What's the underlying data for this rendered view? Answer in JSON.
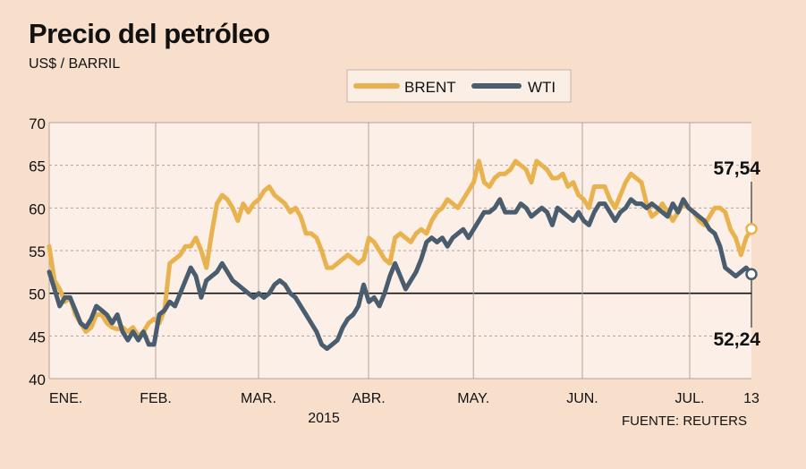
{
  "header": {
    "title": "Precio del petróleo",
    "subtitle": "US$ / BARRIL",
    "source": "FUENTE: REUTERS"
  },
  "chart_data": {
    "type": "line",
    "ylim": [
      40,
      70
    ],
    "y_ticks": [
      40,
      45,
      50,
      55,
      60,
      65,
      70
    ],
    "x_tick_labels": [
      "ENE.",
      "FEB.",
      "MAR.",
      "ABR.",
      "MAY.",
      "JUN.",
      "JUL.",
      "13"
    ],
    "year_label": "2015",
    "reference_line": 50,
    "grid": "dashed-horizontal",
    "legend_position": "top-center",
    "n_points": 135,
    "series": [
      {
        "name": "BRENT",
        "color": "#e8b34e",
        "end_label": "57,54",
        "values": [
          55.5,
          51.5,
          50.5,
          49.0,
          49.5,
          47.5,
          46.5,
          45.5,
          46.0,
          47.5,
          47.5,
          46.5,
          46.0,
          45.8,
          46.0,
          45.5,
          46.0,
          45.0,
          45.5,
          46.5,
          47.0,
          46.5,
          48.0,
          53.5,
          54.0,
          54.5,
          55.5,
          55.5,
          56.5,
          55.0,
          53.0,
          57.0,
          60.5,
          61.5,
          61.0,
          60.0,
          58.5,
          60.5,
          59.5,
          60.5,
          61.0,
          62.0,
          62.5,
          61.5,
          61.0,
          60.5,
          59.5,
          60.0,
          59.0,
          57.0,
          57.0,
          56.5,
          55.0,
          53.0,
          53.0,
          53.5,
          54.0,
          54.5,
          54.0,
          53.5,
          54.0,
          56.5,
          56.0,
          55.0,
          54.0,
          53.5,
          56.5,
          57.0,
          56.5,
          56.0,
          57.0,
          57.5,
          57.0,
          58.5,
          59.5,
          60.0,
          61.0,
          60.5,
          60.0,
          61.0,
          62.0,
          63.0,
          65.5,
          63.0,
          62.5,
          63.5,
          64.0,
          64.0,
          64.5,
          65.5,
          65.0,
          64.5,
          63.0,
          65.5,
          65.0,
          64.5,
          63.5,
          63.5,
          64.0,
          62.5,
          63.0,
          61.5,
          61.0,
          60.0,
          62.5,
          62.5,
          62.5,
          61.0,
          60.0,
          61.5,
          63.0,
          64.0,
          63.5,
          63.0,
          60.5,
          59.0,
          59.5,
          60.5,
          59.5,
          58.5,
          59.5,
          60.5,
          60.0,
          59.5,
          58.5,
          58.0,
          59.0,
          60.0,
          60.0,
          59.5,
          57.5,
          56.5,
          54.5,
          56.5,
          57.54
        ]
      },
      {
        "name": "WTI",
        "color": "#4a5d6e",
        "end_label": "52,24",
        "values": [
          52.5,
          50.5,
          48.5,
          49.5,
          49.5,
          48.0,
          46.5,
          46.0,
          47.0,
          48.5,
          48.0,
          47.5,
          46.5,
          47.5,
          45.5,
          44.5,
          45.5,
          44.5,
          45.5,
          44.0,
          44.0,
          47.5,
          48.0,
          49.0,
          48.5,
          50.0,
          51.5,
          53.0,
          52.0,
          49.5,
          51.5,
          52.0,
          52.5,
          53.5,
          52.5,
          51.5,
          51.0,
          50.5,
          50.0,
          49.5,
          50.0,
          49.5,
          50.0,
          51.0,
          51.5,
          51.0,
          50.0,
          49.5,
          48.5,
          47.5,
          46.5,
          45.5,
          44.0,
          43.5,
          44.0,
          44.5,
          46.0,
          47.0,
          47.5,
          48.5,
          51.0,
          49.0,
          49.5,
          48.5,
          50.0,
          52.0,
          53.5,
          52.0,
          50.5,
          51.5,
          52.5,
          54.0,
          56.0,
          56.5,
          56.0,
          56.5,
          55.5,
          56.5,
          57.0,
          57.5,
          56.5,
          57.5,
          58.5,
          59.5,
          59.5,
          60.0,
          61.0,
          59.5,
          59.5,
          59.5,
          60.5,
          60.0,
          59.0,
          59.5,
          60.0,
          59.5,
          58.0,
          60.0,
          59.5,
          59.0,
          58.5,
          59.5,
          58.5,
          58.0,
          59.5,
          60.5,
          60.5,
          59.5,
          58.5,
          59.5,
          60.0,
          61.0,
          60.5,
          60.5,
          60.0,
          60.5,
          60.0,
          59.5,
          59.0,
          60.5,
          59.5,
          61.0,
          60.0,
          59.5,
          59.0,
          58.5,
          57.5,
          57.0,
          55.5,
          53.0,
          52.5,
          52.0,
          52.5,
          53.0,
          52.24
        ]
      }
    ]
  }
}
